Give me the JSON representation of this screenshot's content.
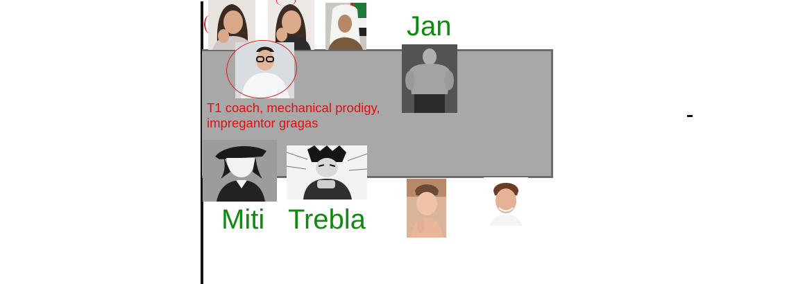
{
  "labels": {
    "jan": "Jan",
    "miti": "Miti",
    "trebla": "Trebla"
  },
  "caption": {
    "line1": "T1 coach, mechanical prodigy,",
    "line2": "impregantor gragas"
  },
  "colors": {
    "label_green": "#0f8a0f",
    "caption_red": "#e01010",
    "board_fill": "#a8a8a8",
    "board_border": "#6b6b6b"
  }
}
